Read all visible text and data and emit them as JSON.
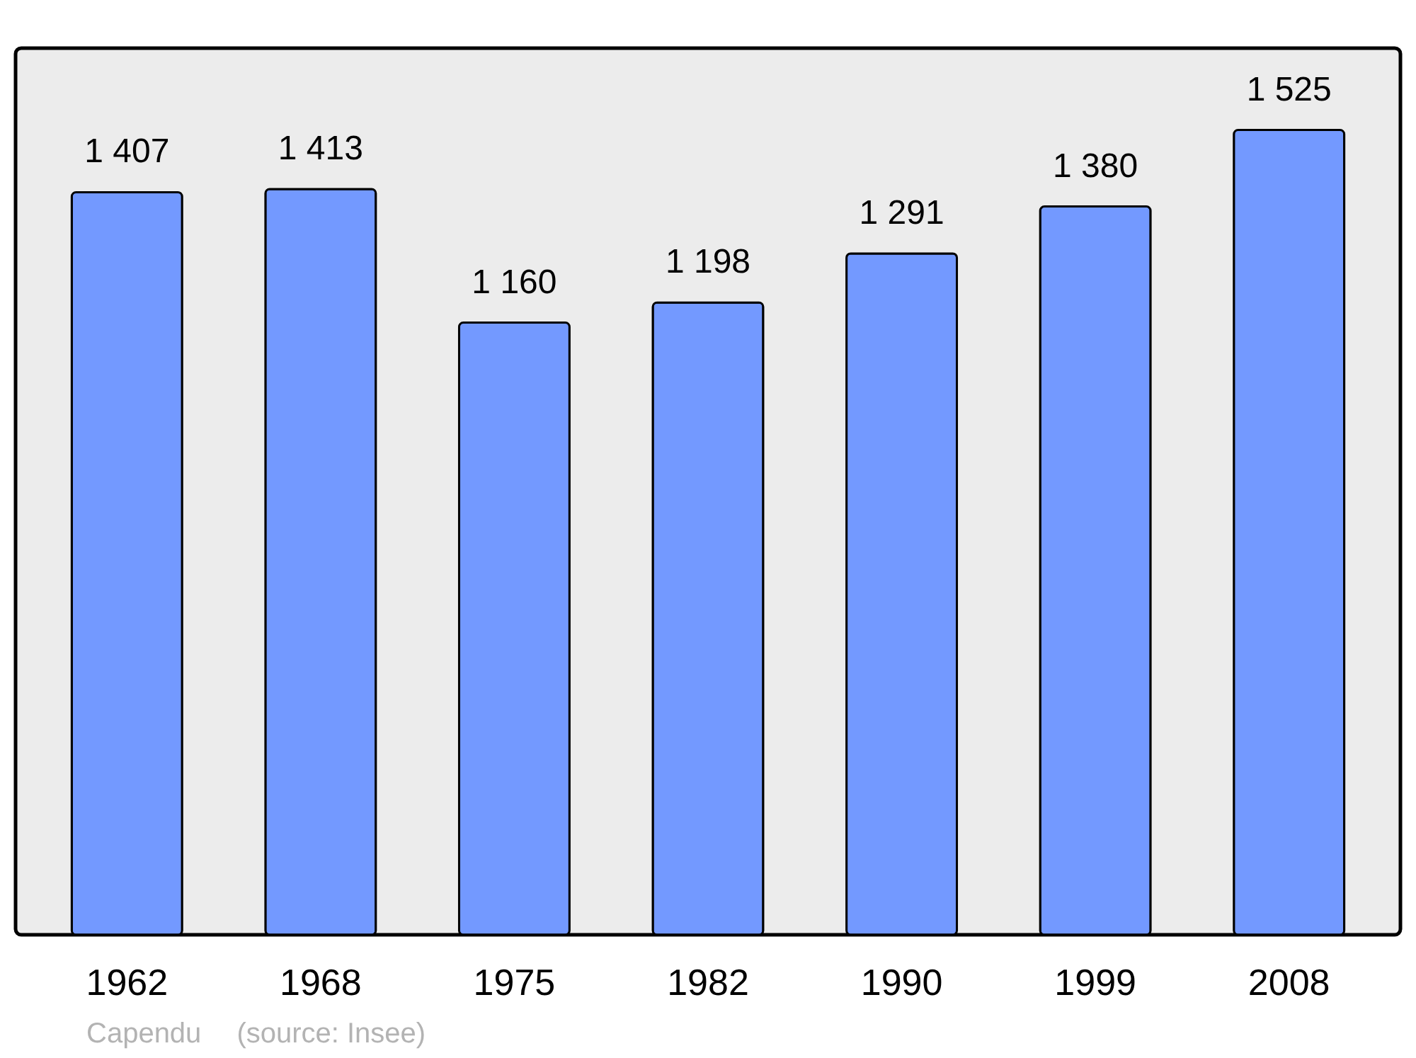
{
  "chart_data": {
    "type": "bar",
    "categories": [
      "1962",
      "1968",
      "1975",
      "1982",
      "1990",
      "1999",
      "2008"
    ],
    "values": [
      1407,
      1413,
      1160,
      1198,
      1291,
      1380,
      1525
    ],
    "value_labels": [
      "1 407",
      "1 413",
      "1 160",
      "1 198",
      "1 291",
      "1 380",
      "1 525"
    ],
    "color": "#7399ff",
    "ylim": [
      0,
      1680
    ],
    "tick_labels": "x",
    "annotations": [
      "Capendu",
      "(source: Insee)"
    ]
  }
}
